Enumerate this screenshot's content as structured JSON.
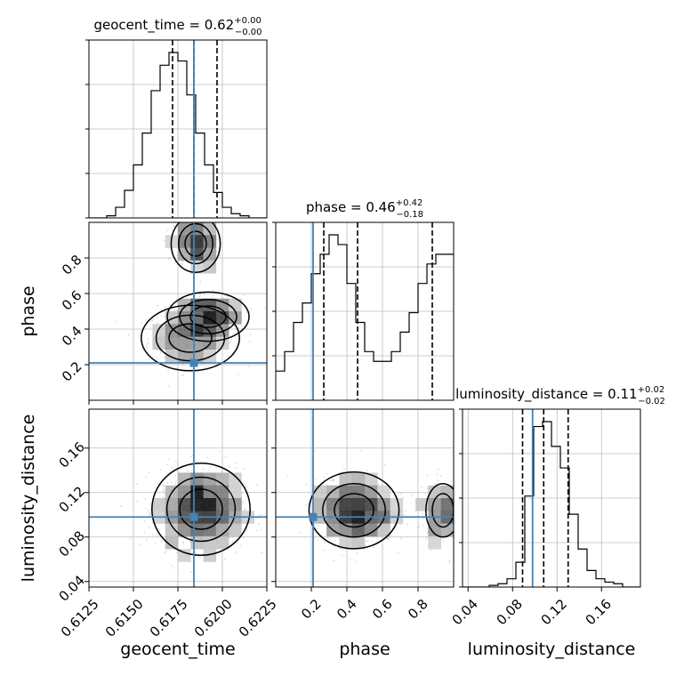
{
  "chart_data": {
    "type": "corner",
    "parameters": [
      "geocent_time",
      "phase",
      "luminosity_distance"
    ],
    "truth_color": "#4682b4",
    "titles": [
      {
        "base": "geocent_time = 0.62",
        "plus": "+0.00",
        "minus": "−0.00"
      },
      {
        "base": "phase = 0.46",
        "plus": "+0.42",
        "minus": "−0.18"
      },
      {
        "base": "luminosity_distance = 0.11",
        "plus": "+0.02",
        "minus": "−0.02"
      }
    ],
    "axes": {
      "geocent_time": {
        "range": [
          0.6125,
          0.6225
        ],
        "ticks": [
          0.6125,
          0.615,
          0.6175,
          0.62,
          0.6225
        ],
        "tick_labels": [
          "0.6125",
          "0.6150",
          "0.6175",
          "0.6200",
          "0.6225"
        ],
        "truth": 0.6184,
        "quantiles": [
          0.6172,
          0.6184,
          0.6197
        ]
      },
      "phase": {
        "range": [
          0.0,
          1.0
        ],
        "ticks": [
          0.2,
          0.4,
          0.6,
          0.8
        ],
        "tick_labels": [
          "0.2",
          "0.4",
          "0.6",
          "0.8"
        ],
        "truth": 0.21,
        "quantiles": [
          0.27,
          0.46,
          0.88
        ]
      },
      "luminosity_distance": {
        "range": [
          0.035,
          0.195
        ],
        "ticks": [
          0.04,
          0.08,
          0.12,
          0.16
        ],
        "tick_labels": [
          "0.04",
          "0.08",
          "0.12",
          "0.16"
        ],
        "truth": 0.098,
        "quantiles": [
          0.089,
          0.108,
          0.13
        ]
      }
    },
    "histograms": {
      "geocent_time": [
        0,
        0,
        1,
        5,
        13,
        25,
        40,
        60,
        72,
        78,
        74,
        58,
        40,
        25,
        12,
        5,
        2,
        1,
        0,
        0
      ],
      "phase": [
        3,
        5,
        8,
        10,
        13,
        15,
        17,
        16,
        12,
        8,
        5,
        4,
        4,
        5,
        7,
        9,
        12,
        14,
        15,
        15
      ],
      "luminosity_distance": [
        0,
        0,
        0,
        1,
        2,
        5,
        15,
        55,
        97,
        100,
        85,
        72,
        44,
        23,
        10,
        5,
        3,
        2,
        0,
        0
      ]
    },
    "grid": true
  }
}
